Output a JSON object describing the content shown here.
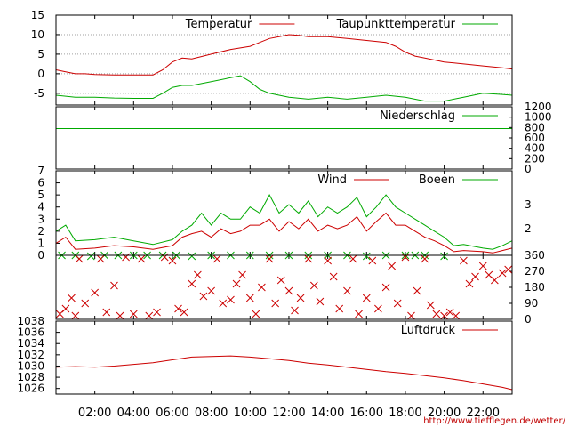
{
  "chart_data": [
    {
      "panel": "temperature",
      "type": "line",
      "ylim": [
        -8,
        15
      ],
      "yticks": [
        -5,
        0,
        5,
        10,
        15
      ],
      "legend_placement": "top-right",
      "series": [
        {
          "name": "Temperatur",
          "color": "#cc0000",
          "x": [
            0,
            0.5,
            1,
            1.5,
            2,
            3,
            4,
            5,
            5.5,
            6,
            6.5,
            7,
            8,
            9,
            10,
            10.5,
            11,
            11.5,
            12,
            12.5,
            13,
            14,
            15,
            16,
            17,
            17.5,
            18,
            18.5,
            19,
            20,
            21,
            22,
            23,
            23.5
          ],
          "y": [
            1,
            0.5,
            0,
            0,
            -0.2,
            -0.3,
            -0.3,
            -0.3,
            1,
            3,
            4,
            3.8,
            5,
            6.2,
            7,
            8,
            9,
            9.5,
            10,
            9.8,
            9.5,
            9.5,
            9,
            8.5,
            8,
            7,
            5.5,
            4.5,
            4,
            3,
            2.5,
            2,
            1.5,
            1.2
          ]
        },
        {
          "name": "Taupunkttemperatur",
          "color": "#00aa00",
          "x": [
            0,
            1,
            2,
            3,
            4,
            5,
            5.5,
            6,
            6.5,
            7,
            8,
            9,
            9.5,
            10,
            10.5,
            11,
            11.5,
            12,
            13,
            14,
            15,
            16,
            17,
            18,
            19,
            20,
            21,
            22,
            23,
            23.5
          ],
          "y": [
            -5.5,
            -6,
            -6,
            -6.2,
            -6.3,
            -6.3,
            -5,
            -3.5,
            -3,
            -3,
            -2,
            -1,
            -0.5,
            -2,
            -4,
            -5,
            -5.5,
            -6,
            -6.5,
            -6,
            -6.5,
            -6,
            -5.5,
            -6,
            -7,
            -7,
            -6,
            -5,
            -5.3,
            -5.5
          ]
        }
      ]
    },
    {
      "panel": "precipitation",
      "type": "line",
      "ylim": [
        0,
        1200
      ],
      "yticks": [
        0,
        200,
        400,
        600,
        800,
        1000,
        1200
      ],
      "legend_placement": "top-right",
      "series": [
        {
          "name": "Niederschlag",
          "color": "#00aa00",
          "x": [
            0,
            23.5
          ],
          "y": [
            780,
            780
          ]
        }
      ]
    },
    {
      "panel": "wind",
      "type": "line",
      "ylim": [
        0,
        7
      ],
      "yticks": [
        0,
        1,
        2,
        3,
        4,
        5,
        6,
        7
      ],
      "right_scale_ticks": [
        {
          "label": "2",
          "at": 2.2
        },
        {
          "label": "3",
          "at": 4.2
        }
      ],
      "legend_placement": "top-right",
      "series": [
        {
          "name": "Wind",
          "color": "#cc0000",
          "x": [
            0,
            0.5,
            1,
            2,
            3,
            4,
            5,
            6,
            6.5,
            7,
            7.5,
            8,
            8.5,
            9,
            9.5,
            10,
            10.5,
            11,
            11.5,
            12,
            12.5,
            13,
            13.5,
            14,
            14.5,
            15,
            15.5,
            16,
            16.5,
            17,
            17.5,
            18,
            18.5,
            19,
            19.5,
            20,
            20.5,
            21,
            22,
            22.5,
            23,
            23.5
          ],
          "y": [
            1,
            1.5,
            0.5,
            0.6,
            0.8,
            0.7,
            0.5,
            0.8,
            1.5,
            1.8,
            2,
            1.5,
            2.2,
            1.8,
            2,
            2.5,
            2.5,
            3,
            2,
            2.8,
            2.2,
            3,
            2,
            2.5,
            2.2,
            2.5,
            3.2,
            2,
            2.8,
            3.5,
            2.5,
            2.5,
            2,
            1.5,
            1.2,
            0.8,
            0.3,
            0.4,
            0.3,
            0.2,
            0.4,
            0.6
          ]
        },
        {
          "name": "Boeen",
          "color": "#00aa00",
          "x": [
            0,
            0.5,
            1,
            2,
            3,
            4,
            5,
            6,
            6.5,
            7,
            7.5,
            8,
            8.5,
            9,
            9.5,
            10,
            10.5,
            11,
            11.5,
            12,
            12.5,
            13,
            13.5,
            14,
            14.5,
            15,
            15.5,
            16,
            16.5,
            17,
            17.5,
            18,
            18.5,
            19,
            19.5,
            20,
            20.5,
            21,
            22,
            22.5,
            23,
            23.5
          ],
          "y": [
            2,
            2.5,
            1.2,
            1.3,
            1.5,
            1.2,
            0.9,
            1.3,
            2,
            2.5,
            3.5,
            2.5,
            3.5,
            3,
            3,
            4,
            3.5,
            5,
            3.5,
            4.2,
            3.5,
            4.5,
            3.2,
            4,
            3.5,
            4,
            4.8,
            3.2,
            4,
            5,
            4,
            3.5,
            3,
            2.5,
            2,
            1.5,
            0.8,
            0.9,
            0.6,
            0.5,
            0.8,
            1.2
          ]
        }
      ]
    },
    {
      "panel": "wind-direction",
      "type": "scatter",
      "ylim": [
        0,
        360
      ],
      "yticks": [
        0,
        90,
        180,
        270,
        360
      ],
      "series": [
        {
          "color": "#cc0000",
          "marker": "x",
          "x": [
            0.2,
            0.5,
            0.8,
            1,
            1.2,
            1.5,
            2,
            2.3,
            2.6,
            3,
            3.3,
            3.6,
            4,
            4.4,
            4.8,
            5.2,
            5.6,
            6,
            6.3,
            6.6,
            7,
            7.3,
            7.6,
            8,
            8.3,
            8.6,
            9,
            9.3,
            9.6,
            10,
            10.3,
            10.6,
            11,
            11.3,
            11.6,
            12,
            12.3,
            12.6,
            13,
            13.3,
            13.6,
            14,
            14.3,
            14.6,
            15,
            15.3,
            15.6,
            16,
            16.3,
            16.6,
            17,
            17.3,
            17.6,
            18,
            18.3,
            18.6,
            19,
            19.3,
            19.6,
            20,
            20.3,
            20.6,
            21,
            21.3,
            21.6,
            22,
            22.3,
            22.6,
            23,
            23.3
          ],
          "y": [
            30,
            60,
            120,
            20,
            340,
            90,
            150,
            340,
            40,
            190,
            20,
            350,
            30,
            340,
            20,
            40,
            350,
            330,
            60,
            40,
            200,
            250,
            130,
            160,
            340,
            90,
            110,
            200,
            250,
            120,
            30,
            180,
            340,
            90,
            220,
            160,
            50,
            120,
            340,
            190,
            100,
            330,
            240,
            60,
            160,
            340,
            30,
            120,
            330,
            60,
            180,
            300,
            90,
            350,
            20,
            160,
            340,
            80,
            30,
            20,
            40,
            20,
            330,
            200,
            240,
            300,
            250,
            220,
            260,
            280
          ]
        },
        {
          "color": "#00aa00",
          "marker": "x",
          "x": [
            0.3,
            1,
            1.8,
            2.5,
            3.2,
            4,
            4.7,
            5.5,
            6.2,
            7,
            8,
            9,
            10,
            11,
            12,
            13,
            14,
            15,
            16,
            17,
            18,
            18.5,
            19,
            20
          ],
          "y": [
            360,
            360,
            355,
            360,
            360,
            360,
            360,
            360,
            360,
            355,
            360,
            360,
            360,
            360,
            360,
            360,
            360,
            360,
            355,
            360,
            360,
            360,
            360,
            355
          ]
        }
      ]
    },
    {
      "panel": "pressure",
      "type": "line",
      "ylim": [
        1025,
        1038
      ],
      "yticks": [
        1026,
        1028,
        1030,
        1032,
        1034,
        1036,
        1038
      ],
      "legend_placement": "top-right",
      "series": [
        {
          "name": "Luftdruck",
          "color": "#cc0000",
          "x": [
            0,
            1,
            2,
            3,
            4,
            5,
            6,
            7,
            8,
            9,
            10,
            11,
            12,
            13,
            14,
            15,
            16,
            17,
            18,
            19,
            20,
            21,
            22,
            23,
            23.5
          ],
          "y": [
            1029.8,
            1029.9,
            1029.8,
            1030,
            1030.3,
            1030.6,
            1031.1,
            1031.6,
            1031.7,
            1031.8,
            1031.6,
            1031.3,
            1031,
            1030.5,
            1030.2,
            1029.8,
            1029.4,
            1029,
            1028.7,
            1028.3,
            1027.9,
            1027.4,
            1026.8,
            1026.2,
            1025.8
          ]
        }
      ]
    }
  ],
  "x_axis": {
    "range": [
      0,
      23.5
    ],
    "ticks": [
      {
        "label": "02:00",
        "value": 2
      },
      {
        "label": "04:00",
        "value": 4
      },
      {
        "label": "06:00",
        "value": 6
      },
      {
        "label": "08:00",
        "value": 8
      },
      {
        "label": "10:00",
        "value": 10
      },
      {
        "label": "12:00",
        "value": 12
      },
      {
        "label": "14:00",
        "value": 14
      },
      {
        "label": "16:00",
        "value": 16
      },
      {
        "label": "18:00",
        "value": 18
      },
      {
        "label": "20:00",
        "value": 20
      },
      {
        "label": "22:00",
        "value": 22
      }
    ]
  },
  "credit": "http://www.tiefflegen.de/wetter/"
}
